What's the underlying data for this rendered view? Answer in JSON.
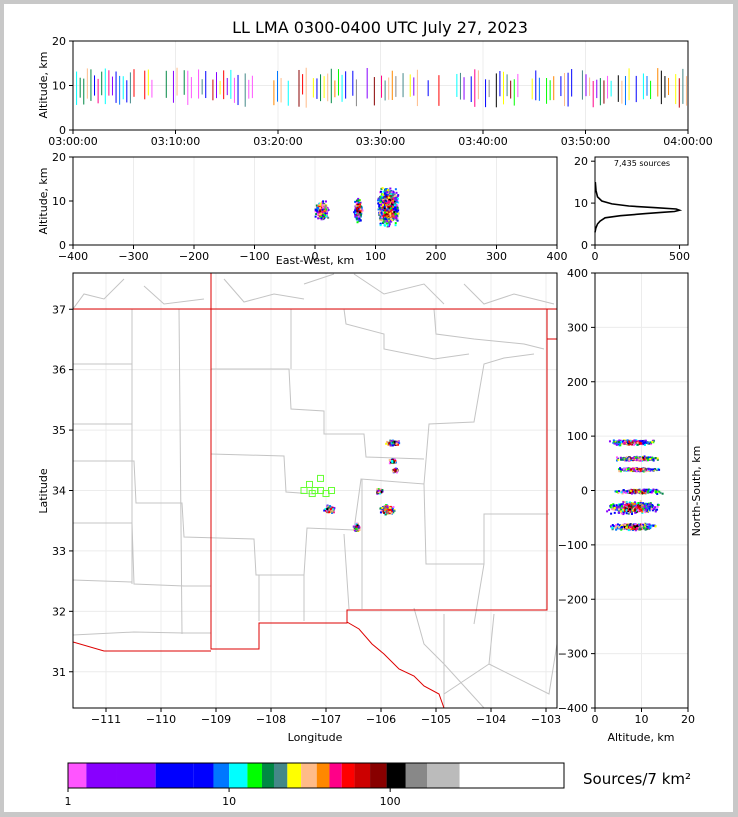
{
  "chart_data": {
    "type": "scatter",
    "title": "LL LMA 0300-0400 UTC July 27, 2023",
    "panels": {
      "time_height": {
        "ylabel": "Altitude, km",
        "ylim": [
          0,
          20
        ],
        "yticks": [
          "0",
          "10",
          "20"
        ],
        "xticks": [
          "03:00:00",
          "03:10:00",
          "03:20:00",
          "03:30:00",
          "03:40:00",
          "03:50:00",
          "04:00:00"
        ],
        "time_range_min": [
          0,
          60
        ],
        "altitude_band_km": [
          5,
          14
        ]
      },
      "ew_height": {
        "xlabel": "East-West, km",
        "ylabel": "Altitude, km",
        "xlim": [
          -400,
          400
        ],
        "ylim": [
          0,
          20
        ],
        "xticks": [
          "−400",
          "−300",
          "−200",
          "−100",
          "0",
          "100",
          "200",
          "300",
          "400"
        ],
        "yticks": [
          "0",
          "10",
          "20"
        ],
        "clusters": [
          {
            "x": 10,
            "y": 8,
            "w": 25,
            "h": 5
          },
          {
            "x": 70,
            "y": 8,
            "w": 15,
            "h": 6
          },
          {
            "x": 120,
            "y": 9,
            "w": 40,
            "h": 10
          }
        ]
      },
      "altitude_histogram": {
        "annotation": "7,435 sources",
        "xlim": [
          0,
          550
        ],
        "ylim": [
          0,
          21
        ],
        "xticks": [
          "0",
          "500"
        ],
        "yticks": [
          "0",
          "10",
          "20"
        ],
        "profile": [
          [
            0,
            3
          ],
          [
            5,
            4
          ],
          [
            15,
            5
          ],
          [
            30,
            5.7
          ],
          [
            60,
            6.5
          ],
          [
            150,
            7
          ],
          [
            300,
            7.5
          ],
          [
            400,
            7.8
          ],
          [
            470,
            8
          ],
          [
            500,
            8.3
          ],
          [
            480,
            8.6
          ],
          [
            360,
            8.9
          ],
          [
            200,
            9.3
          ],
          [
            100,
            9.8
          ],
          [
            40,
            10.5
          ],
          [
            15,
            11.5
          ],
          [
            6,
            13
          ],
          [
            2,
            15
          ]
        ]
      },
      "map": {
        "xlabel": "Longitude",
        "ylabel": "Latitude",
        "xlim": [
          -111.6,
          -102.8
        ],
        "ylim": [
          30.4,
          37.6
        ],
        "xticks": [
          "−111",
          "−110",
          "−109",
          "−108",
          "−107",
          "−106",
          "−105",
          "−104",
          "−103"
        ],
        "yticks": [
          "31",
          "32",
          "33",
          "34",
          "35",
          "36",
          "37"
        ],
        "stations": [
          [
            -107.4,
            34.0
          ],
          [
            -107.3,
            34.1
          ],
          [
            -107.2,
            34.0
          ],
          [
            -107.1,
            34.2
          ],
          [
            -107.1,
            34.0
          ],
          [
            -107.0,
            33.95
          ],
          [
            -106.9,
            34.0
          ],
          [
            -107.25,
            33.95
          ]
        ],
        "clusters": [
          {
            "lon": -105.8,
            "lat": 34.8,
            "w": 0.3,
            "h": 0.1
          },
          {
            "lon": -105.8,
            "lat": 34.5,
            "w": 0.15,
            "h": 0.1
          },
          {
            "lon": -105.75,
            "lat": 34.35,
            "w": 0.15,
            "h": 0.08
          },
          {
            "lon": -106.05,
            "lat": 34.0,
            "w": 0.15,
            "h": 0.1
          },
          {
            "lon": -105.9,
            "lat": 33.7,
            "w": 0.3,
            "h": 0.2
          },
          {
            "lon": -106.95,
            "lat": 33.7,
            "w": 0.25,
            "h": 0.15
          },
          {
            "lon": -106.45,
            "lat": 33.4,
            "w": 0.15,
            "h": 0.15
          }
        ]
      },
      "ns_height": {
        "xlabel": "Altitude, km",
        "ylabel": "North-South, km",
        "xlim": [
          0,
          20
        ],
        "ylim": [
          -400,
          400
        ],
        "xticks": [
          "0",
          "10",
          "20"
        ],
        "yticks": [
          "−400",
          "−300",
          "−200",
          "−100",
          "0",
          "100",
          "200",
          "300",
          "400"
        ],
        "bands": [
          {
            "y": 90,
            "alt": 8,
            "h": 12
          },
          {
            "y": 60,
            "alt": 9,
            "h": 10
          },
          {
            "y": 40,
            "alt": 9,
            "h": 8
          },
          {
            "y": 0,
            "alt": 9,
            "h": 10
          },
          {
            "y": -30,
            "alt": 8,
            "h": 25
          },
          {
            "y": -65,
            "alt": 8,
            "h": 15
          }
        ]
      }
    },
    "colorbar": {
      "label": "Sources/7 km²",
      "ticks": [
        "1",
        "10",
        "100"
      ],
      "colors": [
        "#ff55ff",
        "#8800ff",
        "#8800ff",
        "#0000ff",
        "#0000ff",
        "#0077ff",
        "#00ffff",
        "#00ff00",
        "#008844",
        "#448888",
        "#ffff00",
        "#ffbb88",
        "#ff8800",
        "#ff0088",
        "#ff0000",
        "#cc0000",
        "#880000",
        "#000000",
        "#888888",
        "#bbbbbb",
        "#ffffff"
      ]
    }
  }
}
